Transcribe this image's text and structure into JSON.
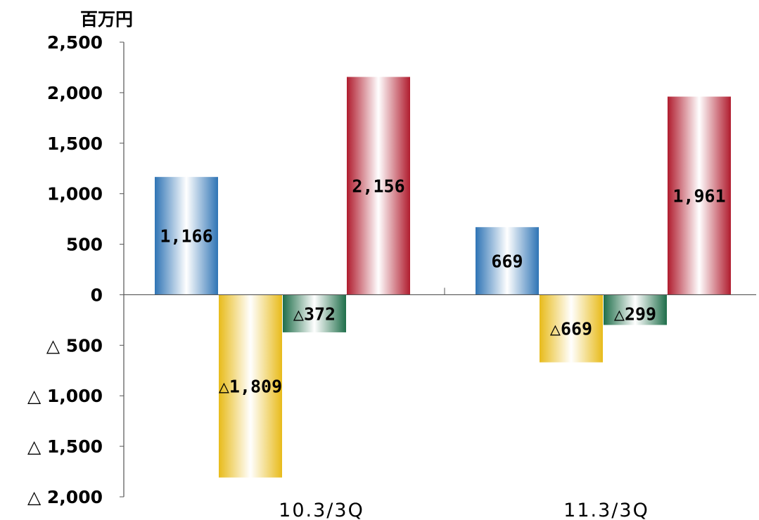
{
  "chart_data": {
    "type": "bar",
    "unit_label": "百万円",
    "categories": [
      "10.3/3Q",
      "11.3/3Q"
    ],
    "series": [
      {
        "color": "#2f74b5",
        "values": [
          1166,
          669
        ],
        "labels": [
          "1,166",
          "669"
        ]
      },
      {
        "color": "#e8bb1a",
        "values": [
          -1809,
          -669
        ],
        "labels": [
          "△1,809",
          "△669"
        ]
      },
      {
        "color": "#1f6e4a",
        "values": [
          -372,
          -299
        ],
        "labels": [
          "△372",
          "△299"
        ]
      },
      {
        "color": "#b01c2e",
        "values": [
          2156,
          1961
        ],
        "labels": [
          "2,156",
          "1,961"
        ]
      }
    ],
    "y_ticks": [
      {
        "value": 2500,
        "label": "2,500"
      },
      {
        "value": 2000,
        "label": "2,000"
      },
      {
        "value": 1500,
        "label": "1,500"
      },
      {
        "value": 1000,
        "label": "1,000"
      },
      {
        "value": 500,
        "label": "500"
      },
      {
        "value": 0,
        "label": "0"
      },
      {
        "value": -500,
        "label": "△ 500"
      },
      {
        "value": -1000,
        "label": "△ 1,000"
      },
      {
        "value": -1500,
        "label": "△ 1,500"
      },
      {
        "value": -2000,
        "label": "△ 2,000"
      }
    ],
    "ylim": [
      -2000,
      2500
    ],
    "grid": false,
    "legend": "none"
  }
}
